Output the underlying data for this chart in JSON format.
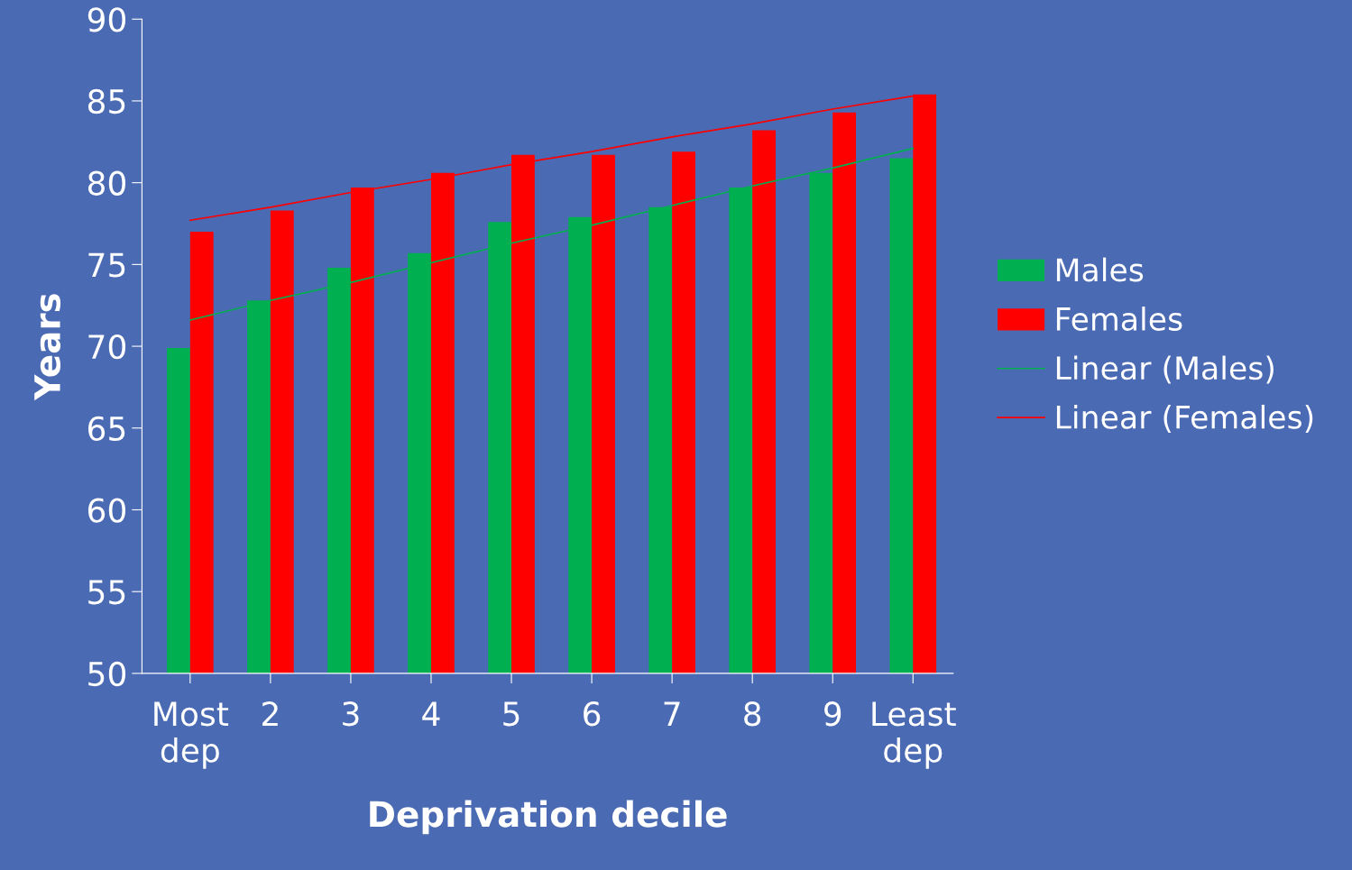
{
  "chart_data": {
    "type": "bar",
    "xlabel": "Deprivation decile",
    "ylabel": "Years",
    "categories": [
      "Most\ndep",
      "2",
      "3",
      "4",
      "5",
      "6",
      "7",
      "8",
      "9",
      "Least\ndep"
    ],
    "series": [
      {
        "name": "Males",
        "color": "#00b050",
        "values": [
          69.9,
          72.8,
          74.8,
          75.7,
          77.6,
          77.9,
          78.5,
          79.7,
          80.6,
          81.5
        ]
      },
      {
        "name": "Females",
        "color": "#ff0000",
        "values": [
          77.0,
          78.3,
          79.7,
          80.6,
          81.7,
          81.7,
          81.9,
          83.2,
          84.3,
          85.4
        ]
      },
      {
        "name": "Linear (Males)",
        "type": "line",
        "color": "#00b050",
        "values": [
          71.6,
          72.8,
          73.9,
          75.1,
          76.3,
          77.4,
          78.6,
          79.8,
          80.9,
          82.1
        ]
      },
      {
        "name": "Linear (Females)",
        "type": "line",
        "color": "#ff0000",
        "values": [
          77.7,
          78.5,
          79.4,
          80.2,
          81.1,
          81.9,
          82.8,
          83.6,
          84.5,
          85.3
        ]
      }
    ],
    "ylim": [
      50,
      90
    ],
    "yticks": [
      50,
      55,
      60,
      65,
      70,
      75,
      80,
      85,
      90
    ],
    "grid": false,
    "legend": "right"
  }
}
